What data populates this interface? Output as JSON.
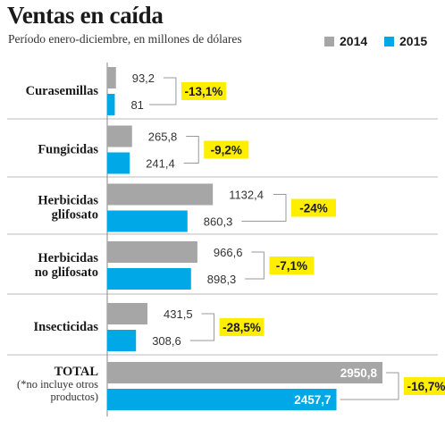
{
  "chart_data": {
    "type": "bar",
    "orientation": "horizontal",
    "title": "Ventas en caída",
    "subtitle": "Período enero-diciembre, en millones de dólares",
    "categories": [
      "Curasemillas",
      "Fungicidas",
      "Herbicidas glifosato",
      "Herbicidas no glifosato",
      "Insecticidas",
      "TOTAL"
    ],
    "category_lines": [
      [
        "Curasemillas"
      ],
      [
        "Fungicidas"
      ],
      [
        "Herbicidas",
        "glifosato"
      ],
      [
        "Herbicidas",
        "no glifosato"
      ],
      [
        "Insecticidas"
      ],
      [
        "TOTAL"
      ]
    ],
    "category_notes": [
      "",
      "",
      "",
      "",
      "",
      "(*no incluye otros productos)"
    ],
    "category_note_lines": [
      [],
      [],
      [],
      [],
      [],
      [
        "(*no incluye otros",
        "productos)"
      ]
    ],
    "series": [
      {
        "name": "2014",
        "color": "#a6a6a6",
        "values": [
          93.2,
          265.8,
          1132.4,
          966.6,
          431.5,
          2950.8
        ],
        "labels": [
          "93,2",
          "265,8",
          "1132,4",
          "966,6",
          "431,5",
          "2950,8"
        ]
      },
      {
        "name": "2015",
        "color": "#00a8e8",
        "values": [
          81,
          241.4,
          860.3,
          898.3,
          308.6,
          2457.7
        ],
        "labels": [
          "81",
          "241,4",
          "860,3",
          "898,3",
          "308,6",
          "2457,7"
        ]
      }
    ],
    "change_labels": [
      "-13,1%",
      "-9,2%",
      "-24%",
      "-7,1%",
      "-28,5%",
      "-16,7%"
    ],
    "highlight_color": "#ffee00",
    "legend_position": "top-right",
    "grid": false
  }
}
